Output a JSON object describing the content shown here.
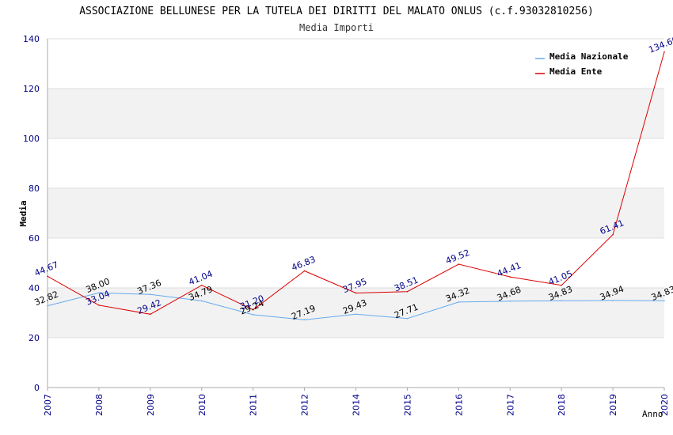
{
  "chart_data": {
    "type": "line",
    "title": "ASSOCIAZIONE BELLUNESE PER LA TUTELA DEI DIRITTI DEL MALATO ONLUS (c.f.93032810256)",
    "subtitle": "Media Importi",
    "xlabel": "Anno",
    "ylabel": "Media",
    "ylim": [
      0,
      140
    ],
    "yticks": [
      "0",
      "20",
      "40",
      "60",
      "80",
      "100",
      "120",
      "140"
    ],
    "categories": [
      "2007",
      "2008",
      "2009",
      "2010",
      "2011",
      "2012",
      "2014",
      "2015",
      "2016",
      "2017",
      "2018",
      "2019",
      "2020"
    ],
    "grid": true,
    "legend_position": "top-right",
    "series": [
      {
        "name": "Media Nazionale",
        "color": "#66aaee",
        "label_color": "#000000",
        "values": [
          32.82,
          38.0,
          37.36,
          34.79,
          29.24,
          27.19,
          29.43,
          27.71,
          34.32,
          34.68,
          34.83,
          34.94,
          34.83
        ],
        "labels": [
          "32.82",
          "38.00",
          "37.36",
          "34.79",
          "29.24",
          "27.19",
          "29.43",
          "27.71",
          "34.32",
          "34.68",
          "34.83",
          "34.94",
          "34.83"
        ]
      },
      {
        "name": "Media Ente",
        "color": "#dd0000",
        "label_color": "#000088",
        "values": [
          44.67,
          33.04,
          29.42,
          41.04,
          31.2,
          46.83,
          37.95,
          38.51,
          49.52,
          44.41,
          41.05,
          61.41,
          134.66
        ],
        "labels": [
          "44.67",
          "33.04",
          "29.42",
          "41.04",
          "31.20",
          "46.83",
          "37.95",
          "38.51",
          "49.52",
          "44.41",
          "41.05",
          "61.41",
          "134.66"
        ]
      }
    ]
  },
  "colors": {
    "band": "#f2f2f2",
    "gridline": "#dddddd",
    "axis": "#aaaaaa",
    "tick_text": "#000088",
    "title_text": "#333333"
  }
}
